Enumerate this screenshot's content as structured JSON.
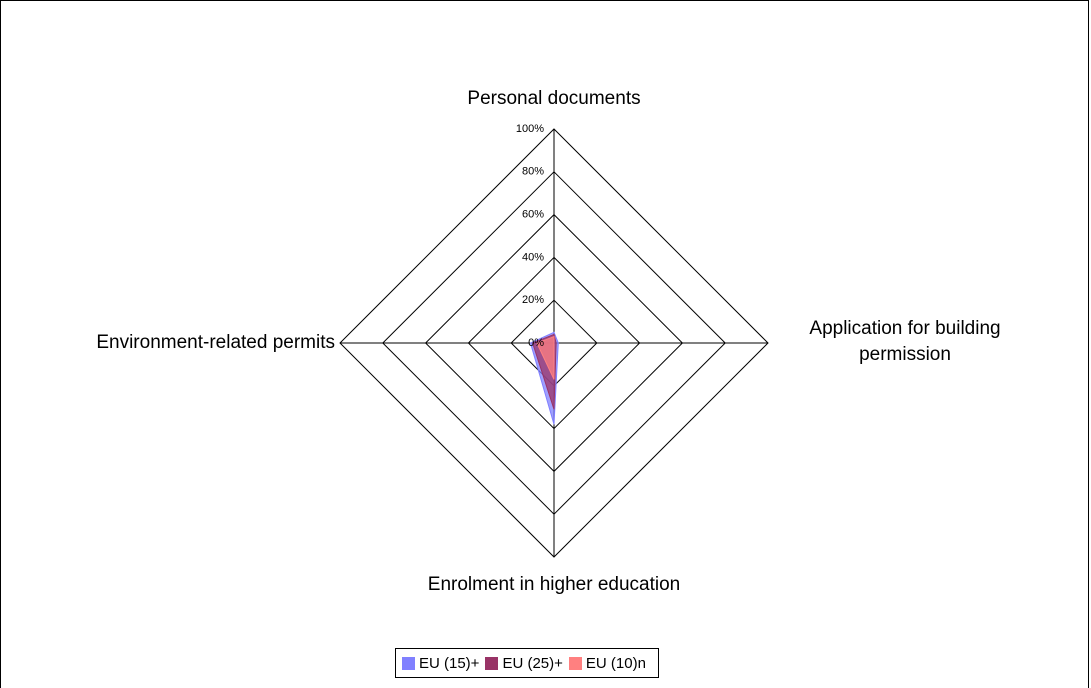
{
  "chart_data": {
    "type": "radar",
    "categories": [
      "Personal documents",
      "Application for building permission",
      "Enrolment in higher education",
      "Environment-related permits"
    ],
    "series": [
      {
        "name": "EU (15)+",
        "color": "#8080ff",
        "values": [
          5,
          2,
          38,
          11
        ]
      },
      {
        "name": "EU (25)+",
        "color": "#993366",
        "values": [
          4,
          1,
          31,
          10
        ]
      },
      {
        "name": "EU (10)n",
        "color": "#ff8080",
        "values": [
          3,
          0,
          17,
          8
        ]
      }
    ],
    "ylim": [
      0,
      100
    ],
    "yticks": [
      {
        "value": 0,
        "label": "0%"
      },
      {
        "value": 20,
        "label": "20%"
      },
      {
        "value": 40,
        "label": "40%"
      },
      {
        "value": 60,
        "label": "60%"
      },
      {
        "value": 80,
        "label": "80%"
      },
      {
        "value": 100,
        "label": "100%"
      }
    ],
    "legend": "bottom"
  }
}
